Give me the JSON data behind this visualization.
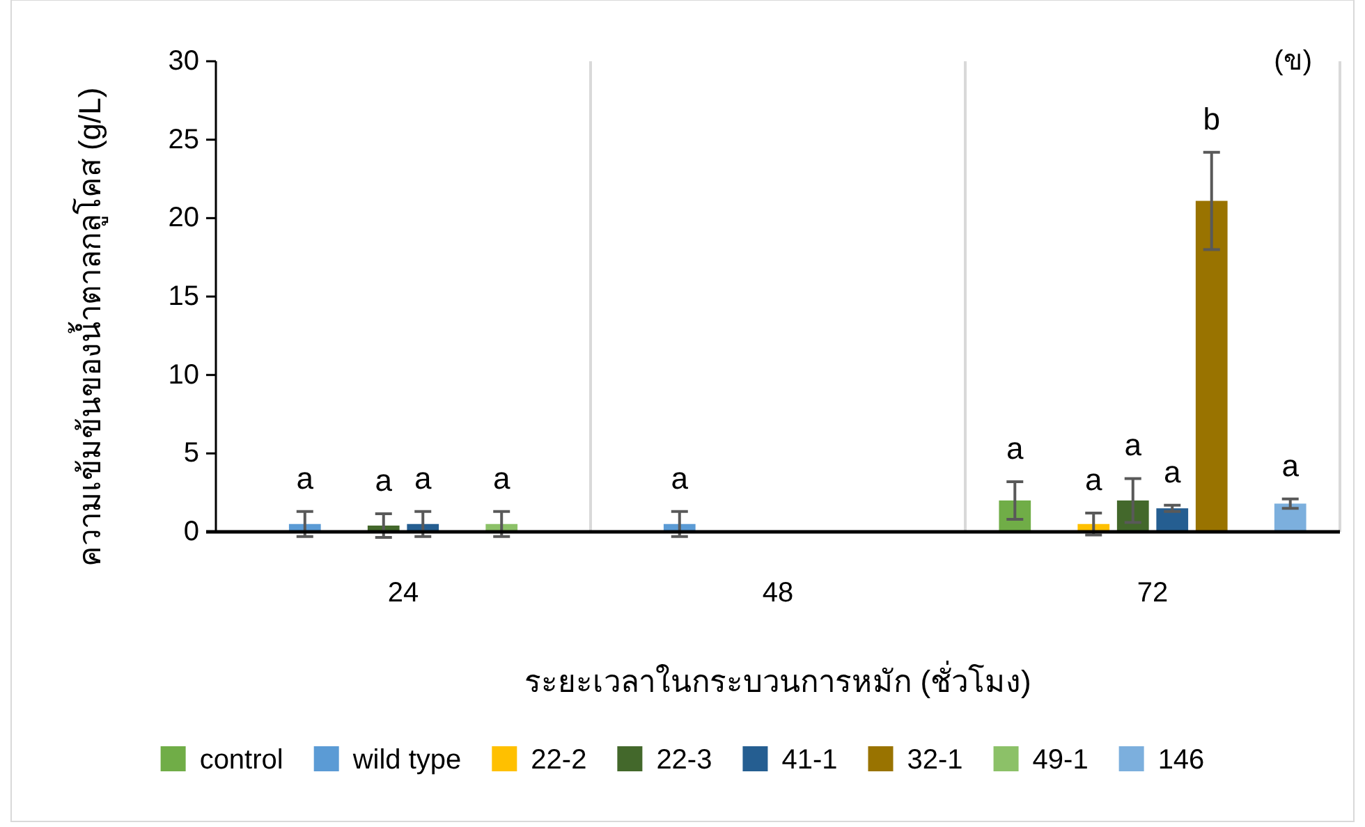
{
  "chart_data": {
    "type": "bar",
    "title": "(ข)",
    "xlabel": "ระยะเวลาในกระบวนการหมัก (ชั่วโมง)",
    "ylabel": "ความเข้มข้นของน้ำตาลกลูโคส (g/L)",
    "categories": [
      "24",
      "48",
      "72"
    ],
    "series": [
      {
        "name": "control",
        "color": "#70ad47",
        "values": [
          null,
          null,
          2.0
        ],
        "errors": [
          null,
          null,
          1.2
        ]
      },
      {
        "name": "wild type",
        "color": "#5b9bd5",
        "values": [
          0.5,
          0.5,
          null
        ],
        "errors": [
          0.8,
          0.8,
          null
        ]
      },
      {
        "name": "22-2",
        "color": "#ffc000",
        "values": [
          null,
          null,
          0.5
        ],
        "errors": [
          null,
          null,
          0.7
        ]
      },
      {
        "name": "22-3",
        "color": "#43682b",
        "values": [
          0.4,
          null,
          2.0
        ],
        "errors": [
          0.75,
          null,
          1.4
        ]
      },
      {
        "name": "41-1",
        "color": "#255e91",
        "values": [
          0.5,
          null,
          1.5
        ],
        "errors": [
          0.8,
          null,
          0.2
        ]
      },
      {
        "name": "32-1",
        "color": "#997300",
        "values": [
          null,
          null,
          21.1
        ],
        "errors": [
          null,
          null,
          3.1
        ]
      },
      {
        "name": "49-1",
        "color": "#8cc168",
        "values": [
          0.5,
          null,
          null
        ],
        "errors": [
          0.8,
          null,
          null
        ]
      },
      {
        "name": "146",
        "color": "#7cafdd",
        "values": [
          null,
          null,
          1.8
        ],
        "errors": [
          null,
          null,
          0.3
        ]
      }
    ],
    "ylim": [
      0,
      30
    ],
    "yticks": [
      0,
      5,
      10,
      15,
      20,
      25,
      30
    ],
    "grid": "x",
    "legend": "bottom",
    "annotations": [
      "a",
      "a",
      "a",
      "a",
      "a",
      "a",
      "a",
      "a",
      "a",
      "b",
      "a"
    ]
  }
}
